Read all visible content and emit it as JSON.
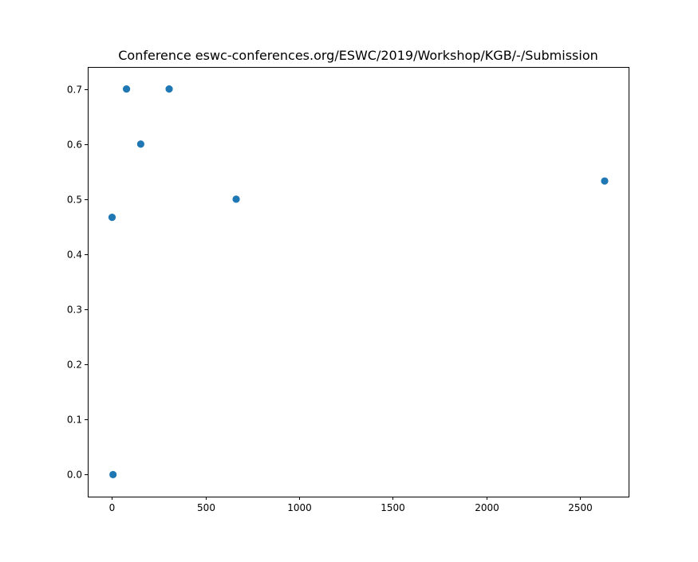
{
  "chart_data": {
    "type": "scatter",
    "title": "Conference eswc-conferences.org/ESWC/2019/Workshop/KGB/-/Submission",
    "xlabel": "",
    "ylabel": "",
    "xlim": [
      -130,
      2760
    ],
    "ylim": [
      -0.04,
      0.74
    ],
    "xticks": [
      0,
      500,
      1000,
      1500,
      2000,
      2500
    ],
    "xtick_labels": [
      "0",
      "500",
      "1000",
      "1500",
      "2000",
      "2500"
    ],
    "yticks": [
      0.0,
      0.1,
      0.2,
      0.3,
      0.4,
      0.5,
      0.6,
      0.7
    ],
    "ytick_labels": [
      "0.0",
      "0.1",
      "0.2",
      "0.3",
      "0.4",
      "0.5",
      "0.6",
      "0.7"
    ],
    "grid": false,
    "marker_color": "#1f77b4",
    "points": [
      {
        "x": 77,
        "y": 0.7
      },
      {
        "x": 305,
        "y": 0.7
      },
      {
        "x": 153,
        "y": 0.6
      },
      {
        "x": 663,
        "y": 0.5
      },
      {
        "x": 0,
        "y": 0.467
      },
      {
        "x": 5,
        "y": 0.0
      },
      {
        "x": 2632,
        "y": 0.533
      }
    ]
  }
}
